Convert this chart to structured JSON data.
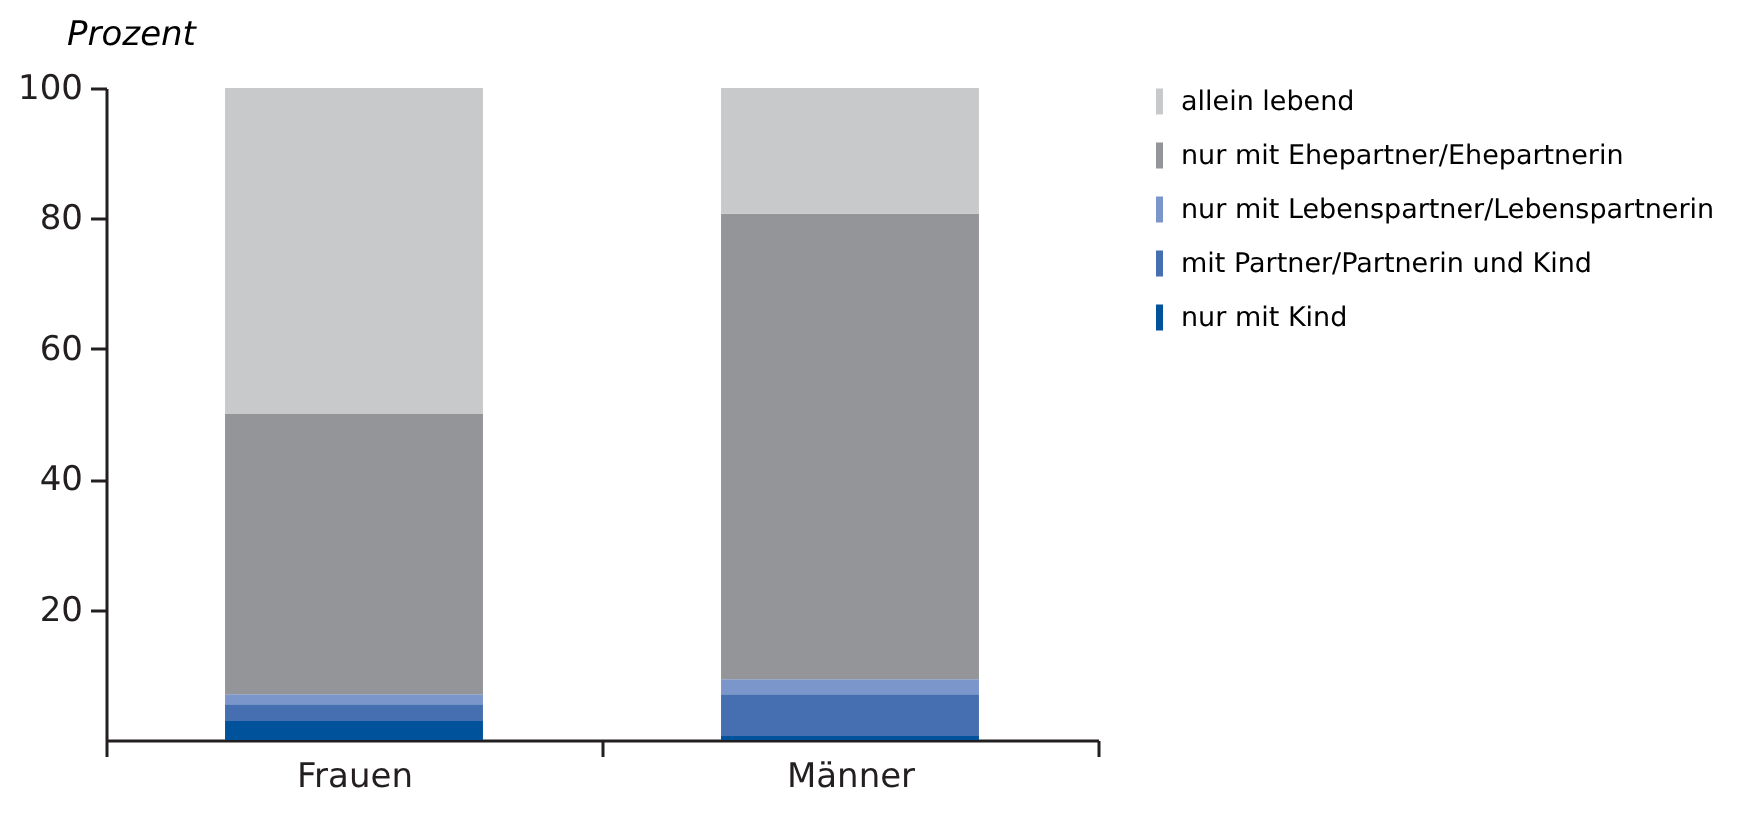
{
  "chart_data": {
    "type": "bar",
    "stacked": true,
    "ylabel": "Prozent",
    "categories": [
      "Frauen",
      "Männer"
    ],
    "series": [
      {
        "name": "nur mit Kind",
        "color": "#00539b",
        "values": [
          2.9,
          0.6
        ]
      },
      {
        "name": "mit Partner/Partnerin und Kind",
        "color": "#456fb0",
        "values": [
          2.6,
          6.4
        ]
      },
      {
        "name": "nur mit Lebenspartner/Lebenspartnerin",
        "color": "#7b96cb",
        "values": [
          1.5,
          2.3
        ]
      },
      {
        "name": "nur mit Ehepartner/Ehepartnerin",
        "color": "#939598",
        "values": [
          43,
          71.4
        ]
      },
      {
        "name": "allein lebend",
        "color": "#c8c9cb",
        "values": [
          50,
          19.3
        ]
      }
    ],
    "ylim": [
      0,
      100
    ],
    "yticks": [
      20,
      40,
      60,
      80,
      100
    ],
    "grid": false,
    "legend": "right"
  }
}
